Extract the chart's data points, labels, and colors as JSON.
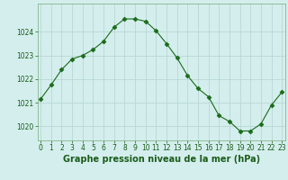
{
  "x": [
    0,
    1,
    2,
    3,
    4,
    5,
    6,
    7,
    8,
    9,
    10,
    11,
    12,
    13,
    14,
    15,
    16,
    17,
    18,
    19,
    20,
    21,
    22,
    23
  ],
  "y": [
    1021.15,
    1021.75,
    1022.4,
    1022.85,
    1023.0,
    1023.25,
    1023.6,
    1024.2,
    1024.55,
    1024.55,
    1024.45,
    1024.05,
    1023.5,
    1022.9,
    1022.15,
    1021.6,
    1021.25,
    1020.45,
    1020.2,
    1019.8,
    1019.8,
    1020.1,
    1020.9,
    1021.45
  ],
  "line_color": "#1a6b1a",
  "marker": "D",
  "marker_size": 2.5,
  "bg_color": "#d4eeed",
  "grid_color": "#b8d8d4",
  "xlabel": "Graphe pression niveau de la mer (hPa)",
  "xlabel_color": "#1a5c1a",
  "ylim": [
    1019.4,
    1025.2
  ],
  "yticks": [
    1020,
    1021,
    1022,
    1023,
    1024
  ],
  "xticks": [
    0,
    1,
    2,
    3,
    4,
    5,
    6,
    7,
    8,
    9,
    10,
    11,
    12,
    13,
    14,
    15,
    16,
    17,
    18,
    19,
    20,
    21,
    22,
    23
  ],
  "tick_fontsize": 5.5,
  "label_fontsize": 7.0,
  "xlim": [
    -0.3,
    23.3
  ]
}
